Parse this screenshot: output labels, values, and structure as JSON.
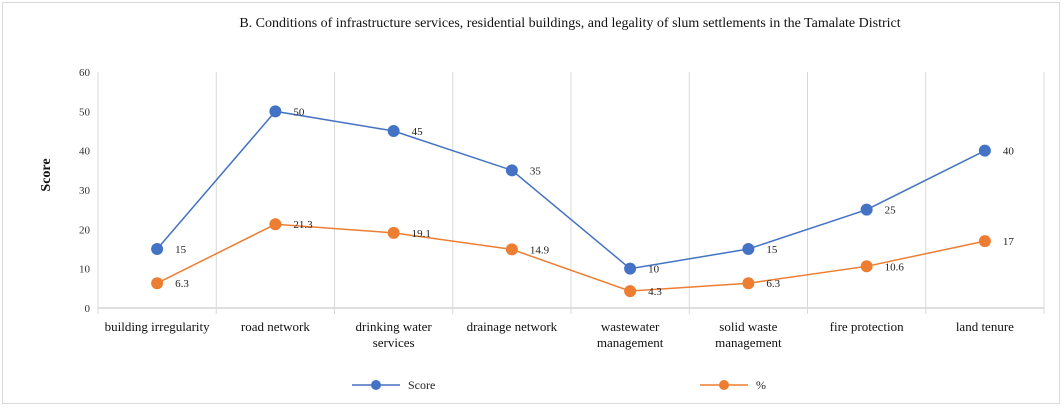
{
  "chart_data": {
    "type": "line",
    "title": "B. Conditions of infrastructure services, residential buildings, and legality of slum settlements in the Tamalate District",
    "xlabel": "",
    "ylabel": "Score",
    "ylim": [
      0,
      60
    ],
    "yticks": [
      "0",
      "10",
      "20",
      "30",
      "40",
      "50",
      "60"
    ],
    "categories": [
      [
        "building irregularity"
      ],
      [
        "road network"
      ],
      [
        "drinking water",
        "services"
      ],
      [
        "drainage network"
      ],
      [
        "wastewater",
        "management"
      ],
      [
        "solid waste",
        "management"
      ],
      [
        "fire protection"
      ],
      [
        "land tenure"
      ]
    ],
    "series": [
      {
        "name": "Score",
        "color": "#4472C4",
        "values": [
          15,
          50,
          45,
          35,
          10,
          15,
          25,
          40
        ],
        "labels": [
          "15",
          "50",
          "45",
          "35",
          "10",
          "15",
          "25",
          "40"
        ]
      },
      {
        "name": "%",
        "color": "#ED7D31",
        "values": [
          6.3,
          21.3,
          19.1,
          14.9,
          4.3,
          6.3,
          10.6,
          17
        ],
        "labels": [
          "6.3",
          "21.3",
          "19.1",
          "14.9",
          "4.3",
          "6.3",
          "10.6",
          "17"
        ]
      }
    ],
    "grid": "vertical category separators",
    "legend_position": "bottom"
  }
}
